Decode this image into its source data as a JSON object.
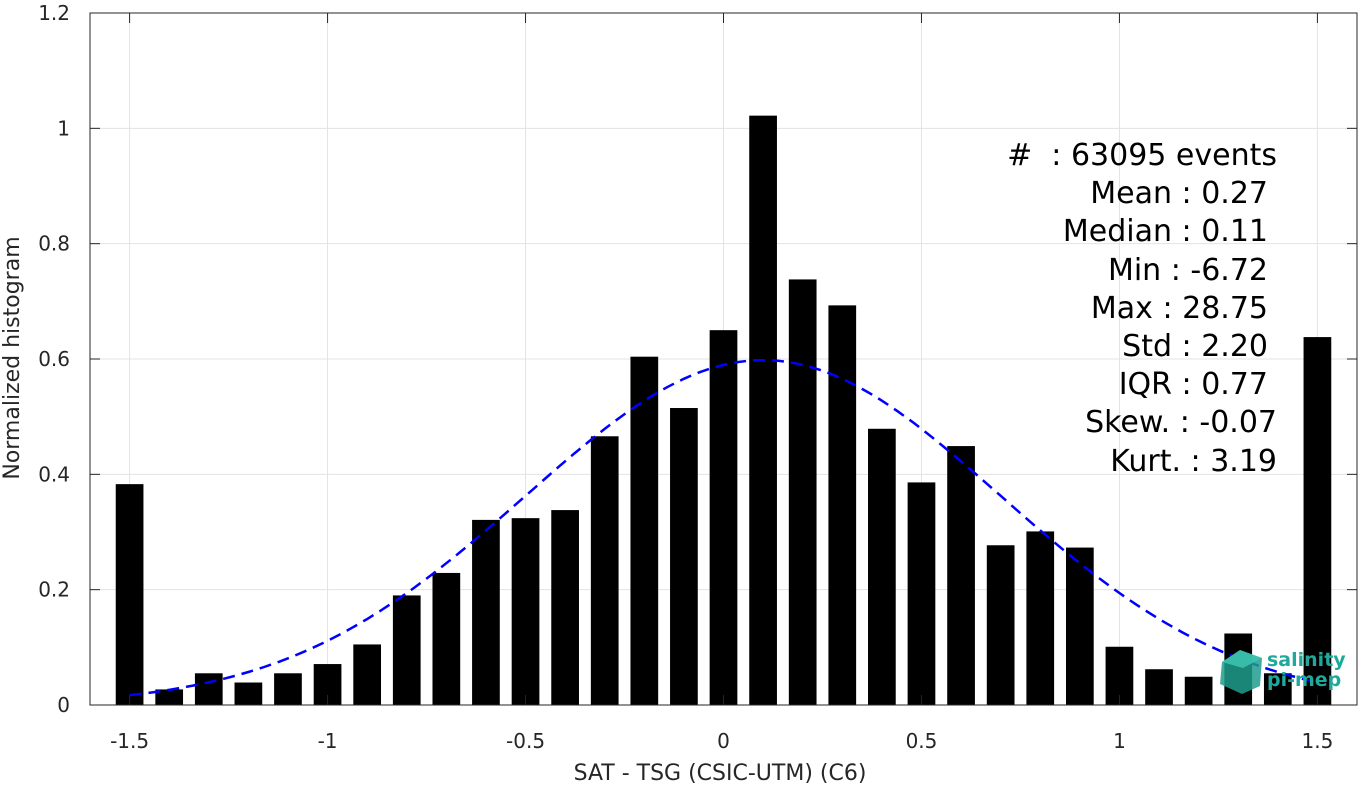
{
  "chart_data": {
    "type": "bar",
    "title": "",
    "xlabel": "SAT - TSG (CSIC-UTM) (C6)",
    "ylabel": "Normalized histogram",
    "xlim": [
      -1.6,
      1.6
    ],
    "ylim": [
      0,
      1.2
    ],
    "grid": true,
    "x_ticks": [
      -1.5,
      -1,
      -0.5,
      0,
      0.5,
      1,
      1.5
    ],
    "x_tick_labels": [
      "-1.5",
      "-1",
      "-0.5",
      "0",
      "0.5",
      "1",
      "1.5"
    ],
    "y_ticks": [
      0,
      0.2,
      0.4,
      0.6,
      0.8,
      1,
      1.2
    ],
    "y_tick_labels": [
      "0",
      "0.2",
      "0.4",
      "0.6",
      "0.8",
      "1",
      "1.2"
    ],
    "bar_width": 0.07,
    "series": [
      {
        "type": "bar",
        "color": "#000000",
        "x": [
          -1.5,
          -1.4,
          -1.3,
          -1.2,
          -1.1,
          -1.0,
          -0.9,
          -0.8,
          -0.7,
          -0.6,
          -0.5,
          -0.4,
          -0.3,
          -0.2,
          -0.1,
          0.0,
          0.1,
          0.2,
          0.3,
          0.4,
          0.5,
          0.6,
          0.7,
          0.8,
          0.9,
          1.0,
          1.1,
          1.2,
          1.3,
          1.4,
          1.5
        ],
        "values": [
          0.383,
          0.027,
          0.055,
          0.039,
          0.055,
          0.071,
          0.105,
          0.19,
          0.229,
          0.321,
          0.324,
          0.338,
          0.466,
          0.604,
          0.515,
          0.65,
          1.022,
          0.738,
          0.693,
          0.479,
          0.386,
          0.449,
          0.277,
          0.301,
          0.273,
          0.101,
          0.062,
          0.049,
          0.124,
          0.055,
          0.638
        ]
      },
      {
        "type": "line",
        "style": "dashed",
        "color": "#0000ff",
        "mean": 0.1,
        "std": 0.6,
        "peak": 0.598,
        "x_range": [
          -1.5,
          1.5
        ]
      }
    ]
  },
  "stats": {
    "events": "#  : 63095 events",
    "mean": "Mean : 0.27",
    "median": "Median : 0.11",
    "min": "Min : -6.72",
    "max": "Max : 28.75",
    "std": "Std : 2.20",
    "iqr": "IQR : 0.77",
    "skew": "Skew. : -0.07",
    "kurt": "Kurt. : 3.19"
  },
  "logo": {
    "line1": "salinity",
    "line2": "pi-mep",
    "color": "#1fa99a"
  }
}
